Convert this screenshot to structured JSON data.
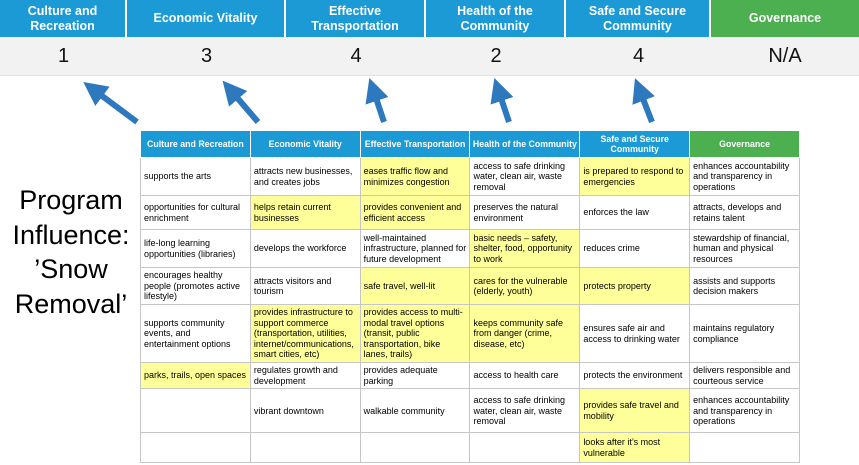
{
  "title": "Program Influence: ’Snow Removal’",
  "colors": {
    "header_blue": "#1b9ad6",
    "header_green": "#4caf50",
    "highlight_yellow": "#ffff99",
    "arrow_blue": "#2e79bd",
    "score_row_bg": "#f2f2f2"
  },
  "scoreboard": {
    "columns": [
      {
        "label": "Culture and Recreation",
        "score": "1",
        "theme": "blue"
      },
      {
        "label": "Economic Vitality",
        "score": "3",
        "theme": "blue"
      },
      {
        "label": "Effective Transportation",
        "score": "4",
        "theme": "blue"
      },
      {
        "label": "Health of the Community",
        "score": "2",
        "theme": "blue"
      },
      {
        "label": "Safe and Secure Community",
        "score": "4",
        "theme": "blue"
      },
      {
        "label": "Governance",
        "score": "N/A",
        "theme": "green"
      }
    ]
  },
  "matrix": {
    "headers": [
      {
        "label": "Culture and Recreation",
        "theme": "blue"
      },
      {
        "label": "Economic Vitality",
        "theme": "blue"
      },
      {
        "label": "Effective Transportation",
        "theme": "blue"
      },
      {
        "label": "Health of the Community",
        "theme": "blue"
      },
      {
        "label": "Safe and Secure Community",
        "theme": "blue"
      },
      {
        "label": "Governance",
        "theme": "green"
      }
    ],
    "rows": [
      [
        {
          "text": "supports the arts",
          "highlight": false
        },
        {
          "text": "attracts new businesses, and creates jobs",
          "highlight": false
        },
        {
          "text": "eases traffic flow and minimizes congestion",
          "highlight": true
        },
        {
          "text": "access to safe drinking water, clean air, waste removal",
          "highlight": false
        },
        {
          "text": "is prepared to respond to emergencies",
          "highlight": true
        },
        {
          "text": "enhances accountability and transparency in operations",
          "highlight": false
        }
      ],
      [
        {
          "text": "opportunities for cultural enrichment",
          "highlight": false
        },
        {
          "text": "helps retain current businesses",
          "highlight": true
        },
        {
          "text": "provides convenient and efficient access",
          "highlight": true
        },
        {
          "text": "preserves the natural environment",
          "highlight": false
        },
        {
          "text": "enforces the law",
          "highlight": false
        },
        {
          "text": "attracts, develops and retains talent",
          "highlight": false
        }
      ],
      [
        {
          "text": "life-long learning opportunities (libraries)",
          "highlight": false
        },
        {
          "text": "develops the workforce",
          "highlight": false
        },
        {
          "text": "well-maintained infrastructure, planned for future development",
          "highlight": false
        },
        {
          "text": "basic needs – safety, shelter, food, opportunity to work",
          "highlight": true
        },
        {
          "text": "reduces crime",
          "highlight": false
        },
        {
          "text": "stewardship of financial, human and physical resources",
          "highlight": false
        }
      ],
      [
        {
          "text": "encourages healthy people (promotes active lifestyle)",
          "highlight": false
        },
        {
          "text": "attracts visitors and tourism",
          "highlight": false
        },
        {
          "text": "safe travel, well-lit",
          "highlight": true
        },
        {
          "text": "cares for the vulnerable (elderly, youth)",
          "highlight": true
        },
        {
          "text": "protects property",
          "highlight": true
        },
        {
          "text": "assists and supports decision makers",
          "highlight": false
        }
      ],
      [
        {
          "text": "supports community events, and entertainment options",
          "highlight": false
        },
        {
          "text": "provides infrastructure to support commerce (transportation, utilities, internet/communications, smart cities, etc)",
          "highlight": true
        },
        {
          "text": "provides access to multi-modal travel options (transit, public transportation, bike lanes, trails)",
          "highlight": true
        },
        {
          "text": "keeps community safe from danger (crime, disease, etc)",
          "highlight": true
        },
        {
          "text": "ensures safe air and access to drinking water",
          "highlight": false
        },
        {
          "text": "maintains regulatory compliance",
          "highlight": false
        }
      ],
      [
        {
          "text": "parks, trails, open spaces",
          "highlight": true
        },
        {
          "text": "regulates growth and development",
          "highlight": false
        },
        {
          "text": "provides adequate parking",
          "highlight": false
        },
        {
          "text": "access to health care",
          "highlight": false
        },
        {
          "text": "protects the environment",
          "highlight": false
        },
        {
          "text": "delivers responsible and courteous service",
          "highlight": false
        }
      ],
      [
        {
          "text": "",
          "highlight": false
        },
        {
          "text": "vibrant downtown",
          "highlight": false
        },
        {
          "text": "walkable community",
          "highlight": false
        },
        {
          "text": "access to safe drinking water, clean air, waste removal",
          "highlight": false
        },
        {
          "text": "provides safe travel and mobility",
          "highlight": true
        },
        {
          "text": "enhances accountability and transparency in operations",
          "highlight": false
        }
      ],
      [
        {
          "text": "",
          "highlight": false
        },
        {
          "text": "",
          "highlight": false
        },
        {
          "text": "",
          "highlight": false
        },
        {
          "text": "",
          "highlight": false
        },
        {
          "text": "looks after it’s most vulnerable",
          "highlight": true
        },
        {
          "text": "",
          "highlight": false
        }
      ]
    ]
  }
}
